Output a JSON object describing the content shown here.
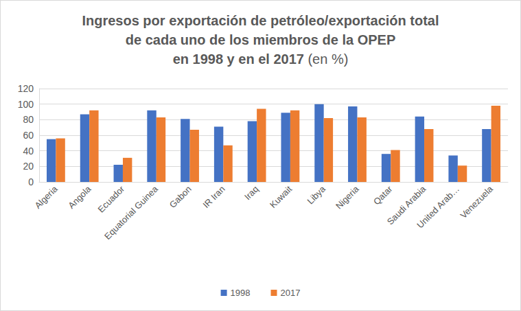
{
  "chart_data": {
    "type": "bar",
    "title": "Ingresos por exportación de petróleo/exportación total de cada uno de los miembros de la OPEP en 1998 y en el 2017",
    "subtitle": "(en %)",
    "categories": [
      "Algeria",
      "Angola",
      "Ecuador",
      "Equatorial Guinea",
      "Gabon",
      "IR Iran",
      "Iraq",
      "Kuwait",
      "Libya",
      "Nigeria",
      "Qatar",
      "Saudi Arabia",
      "United Arab…",
      "Venezuela"
    ],
    "series": [
      {
        "name": "1998",
        "color": "#4472c4",
        "values": [
          55,
          87,
          22,
          92,
          81,
          71,
          78,
          89,
          100,
          97,
          36,
          84,
          34,
          68
        ]
      },
      {
        "name": "2017",
        "color": "#ed7d31",
        "values": [
          56,
          92,
          31,
          83,
          67,
          47,
          94,
          92,
          82,
          83,
          41,
          68,
          21,
          98
        ]
      }
    ],
    "ylim": [
      0,
      120
    ],
    "yticks": [
      0,
      20,
      40,
      60,
      80,
      100,
      120
    ],
    "grid": true,
    "legend": "bottom"
  }
}
